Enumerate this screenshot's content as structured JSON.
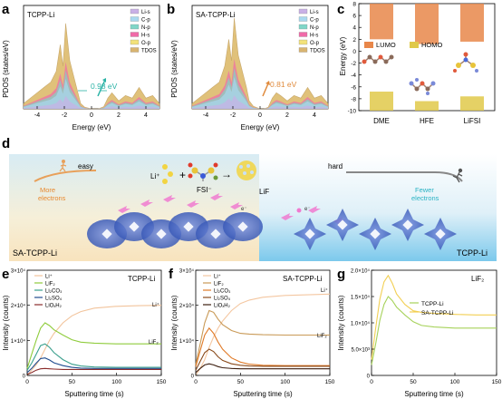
{
  "panels": {
    "a": {
      "letter": "a",
      "title": "TCPP-Li",
      "xlabel": "Energy (eV)",
      "ylabel": "PDOS (states/eV)",
      "xticks": [
        "-4",
        "-2",
        "0",
        "2",
        "4"
      ],
      "legend": [
        "Li-s",
        "C-p",
        "N-p",
        "H-s",
        "O-p",
        "TDOS"
      ],
      "annotation": "0.98 eV"
    },
    "b": {
      "letter": "b",
      "title": "SA-TCPP-Li",
      "xlabel": "Energy (eV)",
      "ylabel": "PDOS (states/eV)",
      "xticks": [
        "-4",
        "-2",
        "0",
        "2",
        "4"
      ],
      "legend": [
        "Li-s",
        "C-p",
        "N-p",
        "H-s",
        "O-p",
        "TDOS"
      ],
      "annotation": "0.81 eV"
    },
    "c": {
      "letter": "c",
      "ylabel": "Energy (eV)",
      "yticks": [
        "8",
        "6",
        "4",
        "2",
        "0",
        "-2",
        "-4",
        "-6",
        "-8",
        "-10"
      ],
      "legend": [
        "LUMO",
        "HOMO"
      ],
      "categories": [
        "DME",
        "HFE",
        "LiFSI"
      ]
    },
    "d": {
      "letter": "d",
      "li_plus": "Li⁺",
      "plus": "+",
      "fsi": "FSI⁻",
      "lif": "LiF",
      "easy": "easy",
      "hard": "hard",
      "more_electrons": "More\nelectrons",
      "fewer_electrons": "Fewer\nelectrons",
      "left_name": "SA-TCPP-Li",
      "right_name": "TCPP-Li",
      "electron": "e⁻"
    },
    "e": {
      "letter": "e",
      "title": "TCPP-Li",
      "legend": [
        "Li⁺",
        "LiF₂",
        "Li₂CO₃",
        "Li₂SO₄",
        "LiOₓH₂"
      ],
      "xlabel": "Sputtering time (s)",
      "ylabel": "Intensity (counts)",
      "xticks": [
        "0",
        "50",
        "100",
        "150"
      ],
      "yticks": [
        "0",
        "1×10⁴",
        "2×10⁴",
        "3×10⁴"
      ],
      "inline": [
        "Li⁺",
        "LiF₂"
      ]
    },
    "f": {
      "letter": "f",
      "title": "SA-TCPP-Li",
      "legend": [
        "Li⁺",
        "LiF₂",
        "Li₂CO₃",
        "Li₂SO₄",
        "LiOₓH₂"
      ],
      "xlabel": "Sputtering time (s)",
      "ylabel": "Intensity (counts)",
      "xticks": [
        "0",
        "50",
        "100",
        "150"
      ],
      "yticks": [
        "0",
        "1×10⁴",
        "2×10⁴",
        "3×10⁴"
      ],
      "inline": [
        "Li⁺",
        "LiF₂"
      ]
    },
    "g": {
      "letter": "g",
      "title": "LiF₂",
      "legend": [
        "TCPP-Li",
        "SA-TCPP-Li"
      ],
      "xlabel": "Sputtering time (s)",
      "ylabel": "Intensity (counts)",
      "xticks": [
        "0",
        "50",
        "100",
        "150"
      ],
      "yticks": [
        "0",
        "5.0×10³",
        "1.0×10⁴",
        "1.5×10⁴",
        "2.0×10⁴"
      ]
    }
  },
  "colors": {
    "li_s": "#c9b0e6",
    "c_p": "#a9d9ef",
    "n_p": "#7fd6c8",
    "h_s": "#f06aa8",
    "o_p": "#f3e27a",
    "tdos": "#d9b470",
    "annot_a": "#2bb3a6",
    "annot_b": "#e08a3c",
    "lumo": "#e8874a",
    "homo": "#e0c94a",
    "line_li": "#f2c49c",
    "line_lif": "#8fcc3c",
    "line_co3": "#3a9f8c",
    "line_so4": "#1f4c8f",
    "line_oh": "#8a2b2b",
    "f_li": "#f4c7a1",
    "f_lif": "#c99a57",
    "f_co3": "#e07a27",
    "f_so4": "#8a4b1c",
    "f_oh": "#3b1d0e",
    "g_tcpp": "#a6d25a",
    "g_sa": "#f2cf53"
  },
  "chart_data": [
    {
      "panel": "a",
      "type": "area",
      "title": "TCPP-Li",
      "xlabel": "Energy (eV)",
      "ylabel": "PDOS (states/eV)",
      "xlim": [
        -5,
        5
      ],
      "series_description_from_legend": [
        "Li-s",
        "C-p",
        "N-p",
        "H-s",
        "O-p",
        "TDOS"
      ],
      "series": [
        {
          "name": "TDOS",
          "x": [
            -5,
            -4.5,
            -4,
            -3.5,
            -3,
            -2.6,
            -2.3,
            -2.1,
            -1.9,
            -1.6,
            -1.3,
            -1,
            -0.8,
            -0.5,
            0,
            0.5,
            0.9,
            1.2,
            1.5,
            2,
            2.5,
            3,
            3.5,
            4,
            4.5,
            5
          ],
          "y": [
            1,
            2,
            3,
            4,
            5,
            7,
            12,
            8,
            16,
            9,
            6,
            3,
            1,
            0.3,
            0,
            0,
            0.4,
            2,
            3,
            1.5,
            2.5,
            2,
            4,
            2,
            2.5,
            1
          ]
        }
      ],
      "annotation": {
        "text": "0.98 eV",
        "gap": 0.98
      }
    },
    {
      "panel": "b",
      "type": "area",
      "title": "SA-TCPP-Li",
      "xlabel": "Energy (eV)",
      "ylabel": "PDOS (states/eV)",
      "xlim": [
        -5,
        5
      ],
      "series": [
        {
          "name": "TDOS",
          "x": [
            -5,
            -4.5,
            -4,
            -3.5,
            -3,
            -2.6,
            -2.3,
            -2.1,
            -1.9,
            -1.6,
            -1.3,
            -1,
            -0.8,
            -0.5,
            0,
            0.3,
            0.6,
            0.9,
            1.2,
            1.5,
            2,
            2.5,
            3,
            3.5,
            4,
            4.5,
            5
          ],
          "y": [
            1,
            2,
            3,
            4,
            5,
            8,
            13,
            9,
            17,
            10,
            7,
            4,
            1.5,
            0.5,
            0,
            0,
            0.3,
            2,
            3,
            2.5,
            1.5,
            2.5,
            2,
            4,
            2,
            2.5,
            1
          ]
        }
      ],
      "annotation": {
        "text": "0.81 eV",
        "gap": 0.81
      }
    },
    {
      "panel": "c",
      "type": "bar",
      "ylabel": "Energy (eV)",
      "ylim": [
        -10,
        8
      ],
      "categories": [
        "DME",
        "HFE",
        "LiFSI"
      ],
      "series": [
        {
          "name": "LUMO",
          "values": [
            2.0,
            1.2,
            1.6
          ]
        },
        {
          "name": "HOMO",
          "values": [
            -6.8,
            -8.4,
            -7.6
          ]
        }
      ]
    },
    {
      "panel": "e",
      "type": "line",
      "title": "TCPP-Li",
      "xlabel": "Sputtering time (s)",
      "ylabel": "Intensity (counts)",
      "xlim": [
        0,
        150
      ],
      "ylim": [
        0,
        30000
      ],
      "x": [
        0,
        5,
        10,
        15,
        20,
        25,
        30,
        40,
        50,
        60,
        75,
        100,
        125,
        150
      ],
      "series": [
        {
          "name": "Li⁺",
          "values": [
            0,
            1500,
            3000,
            5000,
            7500,
            10000,
            12000,
            15000,
            17000,
            18200,
            19200,
            19700,
            19900,
            20000
          ]
        },
        {
          "name": "LiF₂",
          "values": [
            2000,
            6000,
            10000,
            13500,
            15000,
            14200,
            13000,
            11500,
            10200,
            9500,
            9200,
            9000,
            9000,
            9000
          ]
        },
        {
          "name": "Li₂CO₃",
          "values": [
            1500,
            3500,
            6000,
            8500,
            9000,
            8000,
            6500,
            4500,
            3200,
            2700,
            2400,
            2300,
            2300,
            2300
          ]
        },
        {
          "name": "Li₂SO₄",
          "values": [
            800,
            2000,
            3500,
            4800,
            5000,
            4400,
            3600,
            2800,
            2300,
            2100,
            2000,
            2000,
            2000,
            2000
          ]
        },
        {
          "name": "LiOₓH₂",
          "values": [
            300,
            800,
            1500,
            1900,
            2000,
            1900,
            1800,
            1700,
            1700,
            1700,
            1700,
            1700,
            1700,
            1700
          ]
        }
      ]
    },
    {
      "panel": "f",
      "type": "line",
      "title": "SA-TCPP-Li",
      "xlabel": "Sputtering time (s)",
      "ylabel": "Intensity (counts)",
      "xlim": [
        0,
        150
      ],
      "ylim": [
        0,
        30000
      ],
      "x": [
        0,
        5,
        10,
        15,
        20,
        25,
        30,
        40,
        50,
        60,
        75,
        100,
        125,
        150
      ],
      "series": [
        {
          "name": "Li⁺",
          "values": [
            0,
            2000,
            4500,
            8000,
            11000,
            13500,
            15500,
            18500,
            20500,
            21500,
            22300,
            22800,
            23000,
            23200
          ]
        },
        {
          "name": "LiF₂",
          "values": [
            3000,
            9000,
            15000,
            18500,
            18000,
            16000,
            14500,
            12800,
            12000,
            11800,
            11600,
            11500,
            11500,
            11500
          ]
        },
        {
          "name": "Li₂CO₃",
          "values": [
            2500,
            7000,
            11500,
            13500,
            12000,
            9500,
            7500,
            5000,
            3800,
            3200,
            2900,
            2800,
            2800,
            2800
          ]
        },
        {
          "name": "Li₂SO₄",
          "values": [
            1500,
            4000,
            6500,
            7500,
            6800,
            5300,
            4300,
            3300,
            2900,
            2700,
            2600,
            2600,
            2600,
            2600
          ]
        },
        {
          "name": "LiOₓH₂",
          "values": [
            800,
            2000,
            3000,
            3300,
            3000,
            2500,
            2200,
            2000,
            1900,
            1900,
            1900,
            1900,
            1900,
            1900
          ]
        }
      ]
    },
    {
      "panel": "g",
      "type": "line",
      "title": "LiF₂",
      "xlabel": "Sputtering time (s)",
      "ylabel": "Intensity (counts)",
      "xlim": [
        0,
        150
      ],
      "ylim": [
        0,
        20000
      ],
      "x": [
        0,
        5,
        10,
        15,
        20,
        25,
        30,
        40,
        50,
        60,
        75,
        100,
        125,
        150
      ],
      "series": [
        {
          "name": "TCPP-Li",
          "values": [
            2000,
            6000,
            10500,
            13500,
            15000,
            14200,
            13000,
            11500,
            10200,
            9500,
            9200,
            9000,
            9000,
            9000
          ]
        },
        {
          "name": "SA-TCPP-Li",
          "values": [
            3000,
            9000,
            14500,
            17800,
            19000,
            17500,
            15500,
            13500,
            12300,
            12000,
            11800,
            11600,
            11500,
            11500
          ]
        }
      ]
    }
  ]
}
